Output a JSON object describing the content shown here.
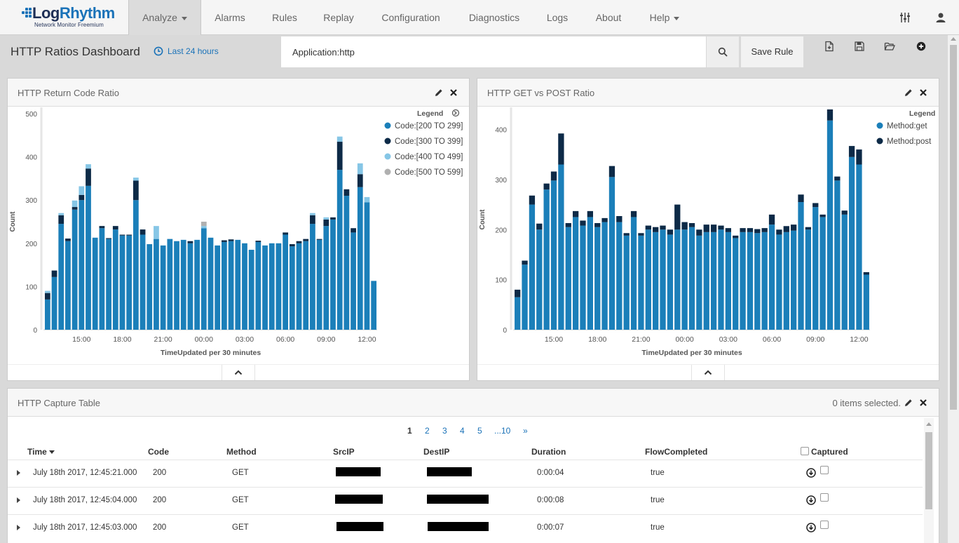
{
  "brand": {
    "name_dark": "Log",
    "name_accent": "Rhythm",
    "subtitle": "Network Monitor Freemium"
  },
  "nav": {
    "items": [
      {
        "label": "Analyze",
        "active": true,
        "dropdown": true
      },
      {
        "label": "Alarms"
      },
      {
        "label": "Rules"
      },
      {
        "label": "Replay"
      },
      {
        "label": "Configuration"
      },
      {
        "label": "Diagnostics"
      },
      {
        "label": "Logs"
      },
      {
        "label": "About"
      },
      {
        "label": "Help",
        "dropdown": true
      }
    ],
    "icons": [
      "sliders-icon",
      "user-icon"
    ]
  },
  "header": {
    "title": "HTTP Ratios Dashboard",
    "time_range": "Last 24 hours",
    "search_value": "Application:http",
    "save_rule": "Save Rule"
  },
  "colors": {
    "code_200": "#1b7fb9",
    "code_300": "#0d2a47",
    "code_400": "#86c6e6",
    "code_500": "#b0b0b0",
    "accent": "#1a72b8"
  },
  "panels": {
    "return_code": {
      "title": "HTTP Return Code Ratio"
    },
    "get_post": {
      "title": "HTTP GET vs POST Ratio"
    },
    "capture": {
      "title": "HTTP Capture Table",
      "selected": "0 items selected."
    }
  },
  "chart_data": [
    {
      "type": "bar",
      "stacked": true,
      "title": "HTTP Return Code Ratio",
      "xlabel": "TimeUpdated per 30 minutes",
      "ylabel": "Count",
      "ylim": [
        0,
        500
      ],
      "yticks": [
        0,
        100,
        200,
        300,
        400,
        500
      ],
      "xticks": [
        {
          "label": "15:00",
          "index": 5
        },
        {
          "label": "18:00",
          "index": 11
        },
        {
          "label": "21:00",
          "index": 17
        },
        {
          "label": "00:00",
          "index": 23
        },
        {
          "label": "03:00",
          "index": 29
        },
        {
          "label": "06:00",
          "index": 35
        },
        {
          "label": "09:00",
          "index": 41
        },
        {
          "label": "12:00",
          "index": 47
        }
      ],
      "legend_title": "Legend",
      "legend_position": "right",
      "series": [
        {
          "name": "Code:[200 TO 299]",
          "color": "#1b7fb9",
          "values": [
            70,
            122,
            245,
            205,
            278,
            300,
            333,
            213,
            235,
            210,
            232,
            218,
            218,
            300,
            220,
            198,
            210,
            195,
            210,
            205,
            208,
            200,
            208,
            235,
            213,
            195,
            203,
            205,
            208,
            200,
            185,
            203,
            195,
            200,
            200,
            220,
            193,
            200,
            205,
            245,
            208,
            240,
            255,
            370,
            310,
            225,
            330,
            295,
            113
          ]
        },
        {
          "name": "Code:[300 TO 399]",
          "color": "#0d2a47",
          "values": [
            15,
            15,
            20,
            6,
            6,
            12,
            40,
            0,
            5,
            2,
            8,
            2,
            2,
            45,
            12,
            0,
            0,
            0,
            0,
            0,
            0,
            5,
            0,
            0,
            0,
            0,
            4,
            4,
            0,
            0,
            0,
            3,
            0,
            0,
            0,
            5,
            5,
            5,
            5,
            20,
            2,
            15,
            5,
            65,
            15,
            10,
            30,
            0,
            0
          ]
        },
        {
          "name": "Code:[400 TO 499]",
          "color": "#86c6e6",
          "values": [
            5,
            0,
            5,
            0,
            15,
            20,
            10,
            0,
            0,
            0,
            0,
            0,
            0,
            7,
            0,
            0,
            30,
            0,
            0,
            0,
            0,
            0,
            0,
            5,
            0,
            0,
            0,
            0,
            0,
            0,
            0,
            0,
            0,
            0,
            0,
            0,
            0,
            0,
            0,
            5,
            0,
            5,
            0,
            12,
            0,
            0,
            25,
            12,
            0
          ]
        },
        {
          "name": "Code:[500 TO 599]",
          "color": "#b0b0b0",
          "values": [
            0,
            0,
            0,
            0,
            0,
            0,
            0,
            0,
            0,
            0,
            0,
            0,
            0,
            0,
            0,
            0,
            0,
            0,
            0,
            0,
            0,
            0,
            0,
            10,
            0,
            0,
            0,
            0,
            0,
            0,
            0,
            0,
            0,
            0,
            0,
            0,
            0,
            0,
            0,
            0,
            0,
            0,
            0,
            0,
            0,
            0,
            0,
            0,
            0
          ]
        }
      ]
    },
    {
      "type": "bar",
      "stacked": true,
      "title": "HTTP GET vs POST Ratio",
      "xlabel": "TimeUpdated per 30 minutes",
      "ylabel": "Count",
      "ylim": [
        0,
        440
      ],
      "yticks": [
        0,
        100,
        200,
        300,
        400
      ],
      "xticks": [
        {
          "label": "15:00",
          "index": 5
        },
        {
          "label": "18:00",
          "index": 11
        },
        {
          "label": "21:00",
          "index": 17
        },
        {
          "label": "00:00",
          "index": 23
        },
        {
          "label": "03:00",
          "index": 29
        },
        {
          "label": "06:00",
          "index": 35
        },
        {
          "label": "09:00",
          "index": 41
        },
        {
          "label": "12:00",
          "index": 47
        }
      ],
      "legend_title": "Legend",
      "legend_position": "right",
      "series": [
        {
          "name": "Method:get",
          "color": "#1b7fb9",
          "values": [
            65,
            130,
            250,
            200,
            280,
            298,
            330,
            205,
            225,
            208,
            225,
            205,
            215,
            305,
            215,
            188,
            225,
            188,
            200,
            195,
            200,
            190,
            200,
            200,
            205,
            188,
            195,
            195,
            200,
            195,
            183,
            195,
            195,
            193,
            195,
            210,
            190,
            195,
            198,
            255,
            200,
            245,
            225,
            418,
            298,
            230,
            345,
            330,
            110
          ]
        },
        {
          "name": "Method:post",
          "color": "#0d2a47",
          "values": [
            15,
            8,
            18,
            12,
            12,
            18,
            62,
            8,
            12,
            10,
            12,
            8,
            8,
            22,
            12,
            5,
            12,
            5,
            8,
            10,
            8,
            10,
            50,
            15,
            8,
            12,
            15,
            15,
            8,
            8,
            5,
            8,
            8,
            8,
            8,
            20,
            10,
            12,
            12,
            15,
            5,
            8,
            5,
            22,
            8,
            8,
            22,
            30,
            5
          ]
        }
      ]
    }
  ],
  "table": {
    "pages": [
      "1",
      "2",
      "3",
      "4",
      "5",
      "...10",
      "»"
    ],
    "columns": [
      "Time",
      "Code",
      "Method",
      "SrcIP",
      "DestIP",
      "Duration",
      "FlowCompleted",
      "Captured"
    ],
    "rows": [
      {
        "time": "July 18th 2017, 12:45:21.000",
        "code": "200",
        "method": "GET",
        "duration": "0:00:04",
        "flow": "true"
      },
      {
        "time": "July 18th 2017, 12:45:04.000",
        "code": "200",
        "method": "GET",
        "duration": "0:00:08",
        "flow": "true"
      },
      {
        "time": "July 18th 2017, 12:45:03.000",
        "code": "200",
        "method": "GET",
        "duration": "0:00:07",
        "flow": "true"
      }
    ]
  }
}
